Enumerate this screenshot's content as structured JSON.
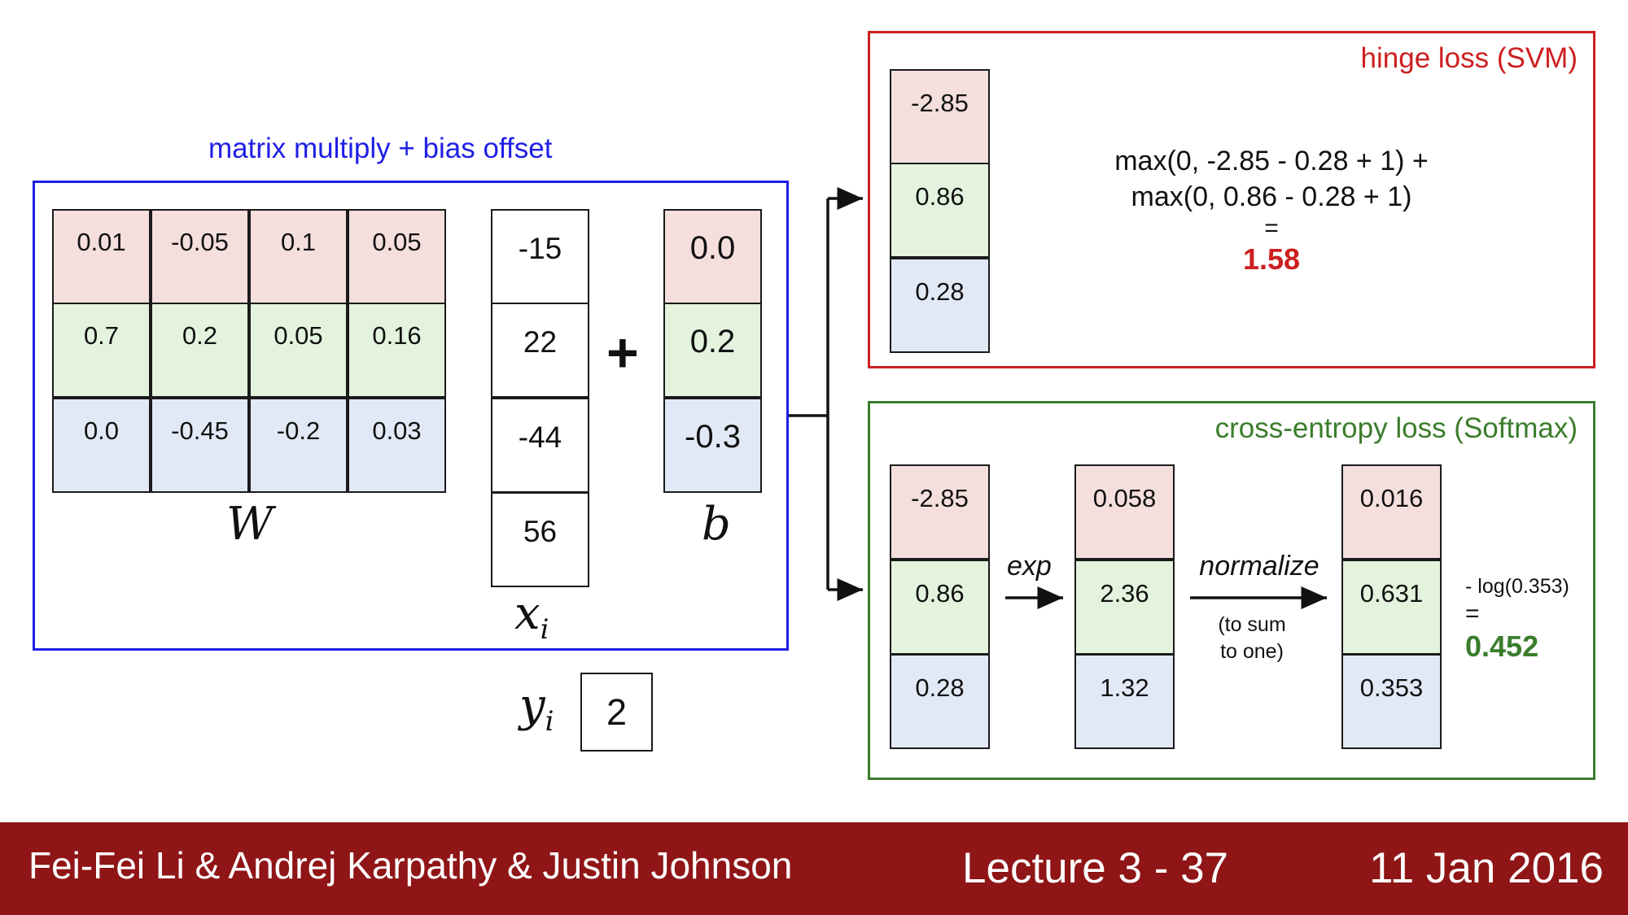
{
  "diagram": {
    "linear": {
      "title": "matrix multiply + bias offset",
      "W": {
        "label": "W",
        "rows": [
          [
            "0.01",
            "-0.05",
            "0.1",
            "0.05"
          ],
          [
            "0.7",
            "0.2",
            "0.05",
            "0.16"
          ],
          [
            "0.0",
            "-0.45",
            "-0.2",
            "0.03"
          ]
        ]
      },
      "x": {
        "label": "x",
        "subscript": "i",
        "values": [
          "-15",
          "22",
          "-44",
          "56"
        ]
      },
      "plus": "+",
      "b": {
        "label": "b",
        "values": [
          "0.0",
          "0.2",
          "-0.3"
        ]
      },
      "y": {
        "label": "y",
        "subscript": "i",
        "value": "2"
      }
    },
    "svm": {
      "title": "hinge loss (SVM)",
      "scores": [
        "-2.85",
        "0.86",
        "0.28"
      ],
      "formula_line1": "max(0, -2.85 - 0.28 + 1) +",
      "formula_line2": "max(0, 0.86 - 0.28 + 1)",
      "equals": "=",
      "result": "1.58"
    },
    "softmax": {
      "title": "cross-entropy loss (Softmax)",
      "scores": [
        "-2.85",
        "0.86",
        "0.28"
      ],
      "exp_label": "exp",
      "exp_values": [
        "0.058",
        "2.36",
        "1.32"
      ],
      "normalize_label": "normalize",
      "normalize_note_line1": "(to sum",
      "normalize_note_line2": "to one)",
      "probs": [
        "0.016",
        "0.631",
        "0.353"
      ],
      "loss_expr": "- log(0.353)",
      "equals": "=",
      "result": "0.452"
    },
    "colors": {
      "linear_frame": "#1f1fe6",
      "svm_frame": "#cc1f1f",
      "softmax_frame": "#3a7d2c",
      "row_red": "#f4dfdc",
      "row_green": "#e3f3dd",
      "row_blue": "#e2e9f6",
      "footer_bg": "#8f1516"
    }
  },
  "footer": {
    "authors": "Fei-Fei Li & Andrej Karpathy & Justin Johnson",
    "lecture": "Lecture 3 - 37",
    "date": "11 Jan 2016"
  }
}
